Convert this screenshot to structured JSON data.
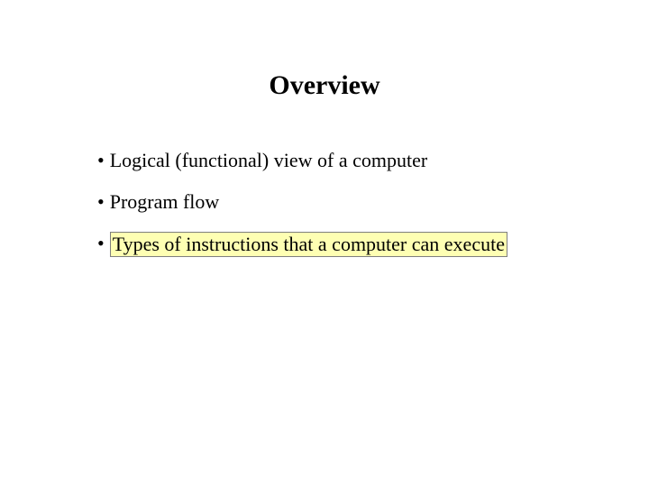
{
  "slide": {
    "title": "Overview",
    "title_fontsize": 30,
    "title_color": "#000000",
    "background_color": "#ffffff",
    "bullets": [
      {
        "marker": "•",
        "text": "Logical (functional) view of a computer",
        "highlighted": false
      },
      {
        "marker": "•",
        "text": "Program flow",
        "highlighted": false
      },
      {
        "marker": "•",
        "text": "Types of instructions that a computer can execute",
        "highlighted": true
      }
    ],
    "bullet_fontsize": 22,
    "bullet_color": "#000000",
    "highlight_fill": "#feffb3",
    "highlight_border": "#7f7f7f"
  }
}
